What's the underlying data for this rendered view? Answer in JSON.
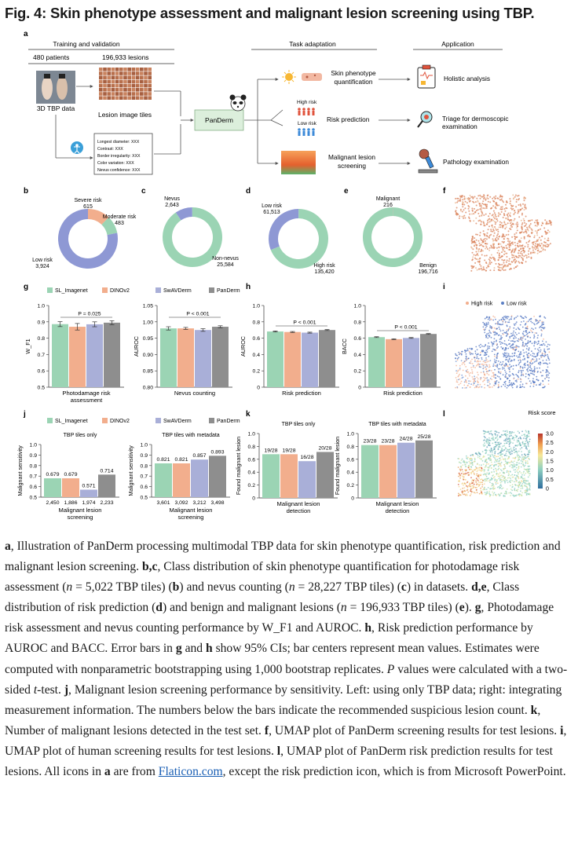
{
  "figure": {
    "title": "Fig. 4: Skin phenotype assessment and malignant lesion screening using TBP."
  },
  "panel_a": {
    "letter": "a",
    "header_training": "Training and validation",
    "patients": "480 patients",
    "lesions": "196,933 lesions",
    "tbp_label": "3D TBP data",
    "tiles_label": "Lesion image tiles",
    "meta_lines": [
      "Longest diameter: XXX",
      "Contrast: XXX",
      "Border irregularity: XXX",
      "Color variation: XXX",
      "Nevus confidence: XXX"
    ],
    "panderm_label": "PanDerm",
    "header_task": "Task adaptation",
    "header_app": "Application",
    "task1": "Skin phenotype quantification",
    "high_risk": "High risk",
    "low_risk": "Low risk",
    "task2": "Risk prediction",
    "task3": "Malignant lesion screening",
    "app1": "Holistic analysis",
    "app2": "Triage for dermoscopic examination",
    "app3": "Pathology examination"
  },
  "donuts": {
    "b": {
      "letter": "b",
      "labels": [
        "Severe risk",
        "Moderate risk",
        "Low risk"
      ],
      "values": [
        "615",
        "483",
        "3,924"
      ]
    },
    "c": {
      "letter": "c",
      "labels": [
        "Nevus",
        "Non-nevus"
      ],
      "values": [
        "2,643",
        "25,584"
      ]
    },
    "d": {
      "letter": "d",
      "labels": [
        "Low risk",
        "High risk"
      ],
      "values": [
        "61,513",
        "135,420"
      ]
    },
    "e": {
      "letter": "e",
      "labels": [
        "Malignant",
        "Benign"
      ],
      "values": [
        "216",
        "196,716"
      ]
    },
    "f_letter": "f"
  },
  "legend": {
    "models": [
      "SL_Imagenet",
      "DINOv2",
      "SwAVDerm",
      "PanDerm"
    ],
    "colors": [
      "#9bd4b4",
      "#f2ae8d",
      "#a9afd8",
      "#8e8e8e"
    ]
  },
  "panel_g": {
    "letter": "g",
    "left": {
      "ylabel": "W_F1",
      "xlabel1": "Photodamage risk",
      "xlabel2": "assessment",
      "pval": "P = 0.025",
      "ticks": [
        "1.0",
        "0.9",
        "0.8",
        "0.7",
        "0.6",
        "0.5"
      ]
    },
    "right": {
      "ylabel": "AUROC",
      "xlabel": "Nevus counting",
      "pval": "P < 0.001",
      "ticks": [
        "1.05",
        "1.00",
        "0.95",
        "0.90",
        "0.85",
        "0.80"
      ]
    }
  },
  "panel_h": {
    "letter": "h",
    "left": {
      "ylabel": "AUROC",
      "xlabel": "Risk prediction",
      "pval": "P < 0.001",
      "ticks": [
        "1.0",
        "0.8",
        "0.6",
        "0.4",
        "0.2",
        "0"
      ]
    },
    "right": {
      "ylabel": "BACC",
      "xlabel": "Risk prediction",
      "pval": "P < 0.001",
      "ticks": [
        "1.0",
        "0.8",
        "0.6",
        "0.4",
        "0.2",
        "0"
      ]
    }
  },
  "panel_i": {
    "letter": "i",
    "legend": [
      "High risk",
      "Low risk"
    ]
  },
  "panel_j": {
    "letter": "j",
    "left": {
      "title": "TBP tiles only",
      "ylabel": "Malignant sensitivity",
      "xlabel1": "Malignant lesion",
      "xlabel2": "screening",
      "labels": [
        "0.679",
        "0.679",
        "0.571",
        "0.714"
      ],
      "counts": [
        "2,450",
        "1,886",
        "1,974",
        "2,233"
      ],
      "ticks": [
        "1.0",
        "0.9",
        "0.8",
        "0.7",
        "0.6",
        "0.5"
      ]
    },
    "right": {
      "title": "TBP tiles with metadata",
      "ylabel": "Malignant sensitivity",
      "xlabel1": "Malignant lesion",
      "xlabel2": "screening",
      "labels": [
        "0.821",
        "0.821",
        "0.857",
        "0.893"
      ],
      "counts": [
        "3,601",
        "3,092",
        "3,212",
        "3,498"
      ],
      "ticks": [
        "1.0",
        "0.9",
        "0.8",
        "0.7",
        "0.6",
        "0.5"
      ]
    }
  },
  "panel_k": {
    "letter": "k",
    "left": {
      "title": "TBP tiles only",
      "ylabel": "Found malignant lesion",
      "xlabel1": "Malignant lesion",
      "xlabel2": "detection",
      "labels": [
        "19/28",
        "19/28",
        "16/28",
        "20/28"
      ],
      "ticks": [
        "1.0",
        "0.8",
        "0.6",
        "0.4",
        "0.2",
        "0"
      ]
    },
    "right": {
      "title": "TBP tiles with metadata",
      "ylabel": "Found malignant lesion",
      "xlabel1": "Malignant lesion",
      "xlabel2": "detection",
      "labels": [
        "23/28",
        "23/28",
        "24/28",
        "25/28"
      ],
      "ticks": [
        "1.0",
        "0.8",
        "0.6",
        "0.4",
        "0.2",
        "0"
      ]
    }
  },
  "panel_l": {
    "letter": "l",
    "title": "Risk score",
    "ticks": [
      "3.0",
      "2.5",
      "2.0",
      "1.5",
      "1.0",
      "0.5",
      "0"
    ]
  },
  "chart_data": [
    {
      "type": "pie",
      "panel": "b",
      "categories": [
        "Severe risk",
        "Moderate risk",
        "Low risk"
      ],
      "values": [
        615,
        483,
        3924
      ]
    },
    {
      "type": "pie",
      "panel": "c",
      "categories": [
        "Nevus",
        "Non-nevus"
      ],
      "values": [
        2643,
        25584
      ]
    },
    {
      "type": "pie",
      "panel": "d",
      "categories": [
        "Low risk",
        "High risk"
      ],
      "values": [
        61513,
        135420
      ]
    },
    {
      "type": "pie",
      "panel": "e",
      "categories": [
        "Malignant",
        "Benign"
      ],
      "values": [
        216,
        196716
      ]
    },
    {
      "type": "bar",
      "panel": "g-left",
      "categories": [
        "SL_Imagenet",
        "DINOv2",
        "SwAVDerm",
        "PanDerm"
      ],
      "values": [
        0.886,
        0.87,
        0.885,
        0.895
      ],
      "ylabel": "W_F1",
      "ylim": [
        0.5,
        1.0
      ]
    },
    {
      "type": "bar",
      "panel": "g-right",
      "categories": [
        "SL_Imagenet",
        "DINOv2",
        "SwAVDerm",
        "PanDerm"
      ],
      "values": [
        0.98,
        0.98,
        0.975,
        0.985
      ],
      "ylabel": "AUROC",
      "ylim": [
        0.8,
        1.05
      ]
    },
    {
      "type": "bar",
      "panel": "h-left",
      "categories": [
        "SL_Imagenet",
        "DINOv2",
        "SwAVDerm",
        "PanDerm"
      ],
      "values": [
        0.682,
        0.676,
        0.668,
        0.7
      ],
      "ylabel": "AUROC",
      "ylim": [
        0,
        1.0
      ]
    },
    {
      "type": "bar",
      "panel": "h-right",
      "categories": [
        "SL_Imagenet",
        "DINOv2",
        "SwAVDerm",
        "PanDerm"
      ],
      "values": [
        0.613,
        0.588,
        0.603,
        0.652
      ],
      "ylabel": "BACC",
      "ylim": [
        0,
        1.0
      ]
    },
    {
      "type": "bar",
      "panel": "j-left",
      "categories": [
        "SL_Imagenet",
        "DINOv2",
        "SwAVDerm",
        "PanDerm"
      ],
      "values": [
        0.679,
        0.679,
        0.571,
        0.714
      ],
      "ylabel": "Malignant sensitivity",
      "ylim": [
        0.5,
        1.0
      ]
    },
    {
      "type": "bar",
      "panel": "j-right",
      "categories": [
        "SL_Imagenet",
        "DINOv2",
        "SwAVDerm",
        "PanDerm"
      ],
      "values": [
        0.821,
        0.821,
        0.857,
        0.893
      ],
      "ylabel": "Malignant sensitivity",
      "ylim": [
        0.5,
        1.0
      ]
    },
    {
      "type": "bar",
      "panel": "k-left",
      "categories": [
        "SL_Imagenet",
        "DINOv2",
        "SwAVDerm",
        "PanDerm"
      ],
      "values": [
        0.679,
        0.679,
        0.571,
        0.714
      ],
      "ylabel": "Found malignant lesion",
      "ylim": [
        0,
        1.0
      ]
    },
    {
      "type": "bar",
      "panel": "k-right",
      "categories": [
        "SL_Imagenet",
        "DINOv2",
        "SwAVDerm",
        "PanDerm"
      ],
      "values": [
        0.821,
        0.821,
        0.857,
        0.893
      ],
      "ylabel": "Found malignant lesion",
      "ylim": [
        0,
        1.0
      ]
    }
  ],
  "caption": {
    "a_bold": "a",
    "a_text": ", Illustration of PanDerm processing multimodal TBP data for skin phenotype quantification, risk prediction and malignant lesion screening. ",
    "bc_bold": "b,c",
    "bc_text1": ", Class distribution of skin phenotype quantification for photodamage risk assessment (",
    "n": "n",
    "bc_text2": " = 5,022 TBP tiles) (",
    "b": "b",
    "bc_text3": ") and nevus counting (",
    "bc_text4": " = 28,227 TBP tiles) (",
    "c": "c",
    "bc_text5": ") in datasets. ",
    "de_bold": "d,e",
    "de_text1": ", Class distribution of risk prediction (",
    "d": "d",
    "de_text2": ") and benign and malignant lesions (",
    "de_text3": " = 196,933 TBP tiles) (",
    "e": "e",
    "de_text4": "). ",
    "g_bold": "g",
    "g_text": ", Photodamage risk assessment and nevus counting performance by W_F1 and AUROC. ",
    "h_bold": "h",
    "h_text1": ", Risk prediction performance by AUROC and BACC. Error bars in ",
    "g2": "g",
    "h_text2": " and ",
    "h2": "h",
    "h_text3": " show 95% CIs; bar centers represent mean values. Estimates were computed with nonparametric bootstrapping using 1,000 bootstrap replicates. ",
    "P": "P",
    "p_text1": " values were calculated with a two-sided ",
    "t": "t",
    "p_text2": "-test. ",
    "j_bold": "j",
    "j_text": ", Malignant lesion screening performance by sensitivity. Left: using only TBP data; right: integrating measurement information. The numbers below the bars indicate the recommended suspicious lesion count. ",
    "k_bold": "k",
    "k_text": ", Number of malignant lesions detected in the test set. ",
    "f_bold": "f",
    "f_text": ", UMAP plot of PanDerm screening results for test lesions. ",
    "i_bold": "i",
    "i_text": ", UMAP plot of human screening results for test lesions. ",
    "l_bold": "l",
    "l_text": ", UMAP plot of PanDerm risk prediction results for test lesions. All icons in ",
    "a2": "a",
    "icons_text": " are from ",
    "link": "Flaticon.com",
    "end_text": ", except the risk prediction icon, which is from Microsoft PowerPoint."
  }
}
